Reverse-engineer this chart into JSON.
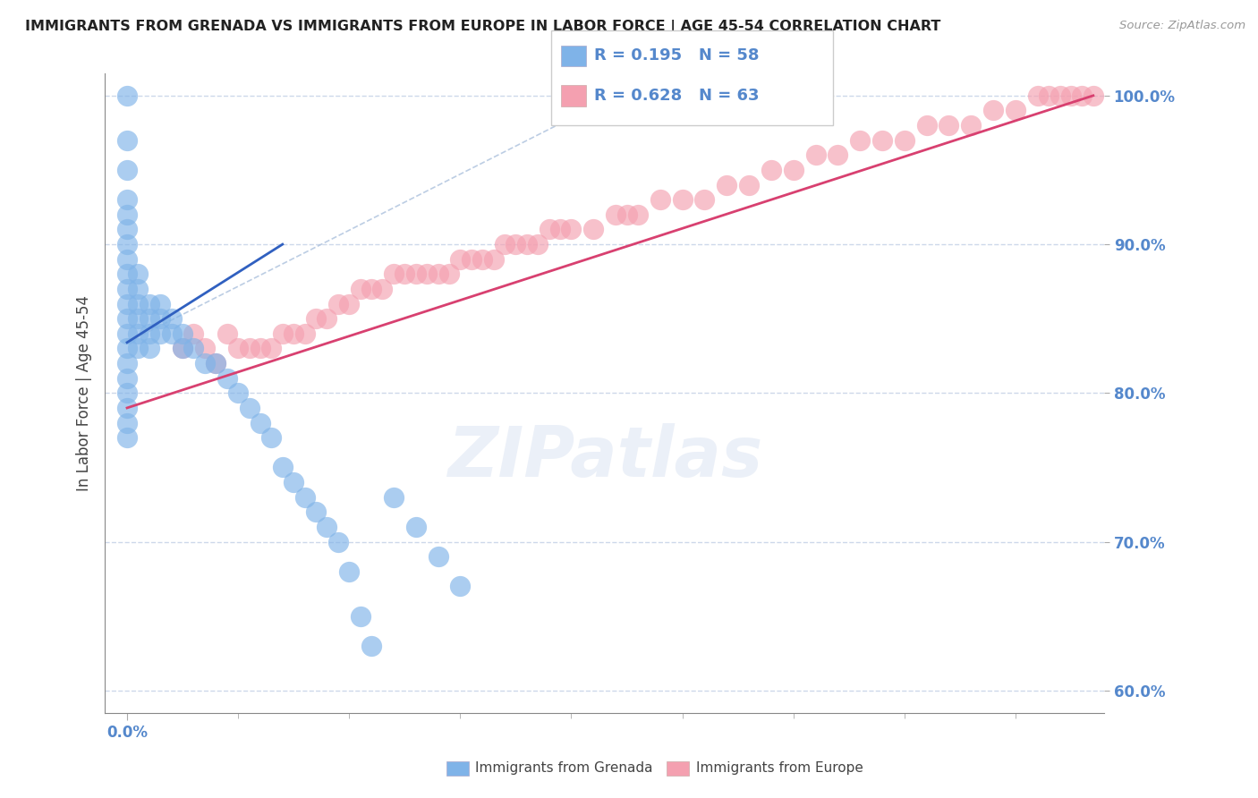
{
  "title": "IMMIGRANTS FROM GRENADA VS IMMIGRANTS FROM EUROPE IN LABOR FORCE | AGE 45-54 CORRELATION CHART",
  "source": "Source: ZipAtlas.com",
  "ylabel": "In Labor Force | Age 45-54",
  "watermark": "ZIPatlas",
  "legend1_label": "Immigrants from Grenada",
  "legend2_label": "Immigrants from Europe",
  "R_grenada": 0.195,
  "N_grenada": 58,
  "R_europe": 0.628,
  "N_europe": 63,
  "color_grenada": "#7fb3e8",
  "color_europe": "#f4a0b0",
  "color_grenada_line": "#3060c0",
  "color_europe_line": "#d84070",
  "xlim_min": -0.002,
  "xlim_max": 0.088,
  "ylim_min": 0.585,
  "ylim_max": 1.015,
  "yticks": [
    0.6,
    0.7,
    0.8,
    0.9,
    1.0
  ],
  "xtick_val": 0.0,
  "background_color": "#ffffff",
  "grid_color": "#c8d4e8",
  "title_color": "#222222",
  "axis_label_color": "#444444",
  "tick_label_color": "#5588cc",
  "grenada_x": [
    0.0,
    0.0,
    0.0,
    0.0,
    0.0,
    0.0,
    0.0,
    0.0,
    0.0,
    0.0,
    0.0,
    0.0,
    0.0,
    0.0,
    0.0,
    0.0,
    0.0,
    0.0,
    0.0,
    0.0,
    0.001,
    0.001,
    0.001,
    0.001,
    0.001,
    0.001,
    0.002,
    0.002,
    0.002,
    0.002,
    0.003,
    0.003,
    0.003,
    0.004,
    0.004,
    0.005,
    0.005,
    0.006,
    0.007,
    0.008,
    0.009,
    0.01,
    0.011,
    0.012,
    0.013,
    0.014,
    0.015,
    0.016,
    0.017,
    0.018,
    0.019,
    0.02,
    0.021,
    0.022,
    0.024,
    0.026,
    0.028,
    0.03
  ],
  "grenada_y": [
    1.0,
    0.97,
    0.95,
    0.93,
    0.92,
    0.91,
    0.9,
    0.89,
    0.88,
    0.87,
    0.86,
    0.85,
    0.84,
    0.83,
    0.82,
    0.81,
    0.8,
    0.79,
    0.78,
    0.77,
    0.88,
    0.87,
    0.86,
    0.85,
    0.84,
    0.83,
    0.86,
    0.85,
    0.84,
    0.83,
    0.86,
    0.85,
    0.84,
    0.85,
    0.84,
    0.84,
    0.83,
    0.83,
    0.82,
    0.82,
    0.81,
    0.8,
    0.79,
    0.78,
    0.77,
    0.75,
    0.74,
    0.73,
    0.72,
    0.71,
    0.7,
    0.68,
    0.65,
    0.63,
    0.73,
    0.71,
    0.69,
    0.67
  ],
  "europe_x": [
    0.005,
    0.006,
    0.007,
    0.008,
    0.009,
    0.01,
    0.011,
    0.012,
    0.013,
    0.014,
    0.015,
    0.016,
    0.017,
    0.018,
    0.019,
    0.02,
    0.021,
    0.022,
    0.023,
    0.024,
    0.025,
    0.026,
    0.027,
    0.028,
    0.029,
    0.03,
    0.031,
    0.032,
    0.033,
    0.034,
    0.035,
    0.036,
    0.037,
    0.038,
    0.039,
    0.04,
    0.042,
    0.044,
    0.045,
    0.046,
    0.048,
    0.05,
    0.052,
    0.054,
    0.056,
    0.058,
    0.06,
    0.062,
    0.064,
    0.066,
    0.068,
    0.07,
    0.072,
    0.074,
    0.076,
    0.078,
    0.08,
    0.082,
    0.083,
    0.084,
    0.085,
    0.086,
    0.087
  ],
  "europe_y": [
    0.83,
    0.84,
    0.83,
    0.82,
    0.84,
    0.83,
    0.83,
    0.83,
    0.83,
    0.84,
    0.84,
    0.84,
    0.85,
    0.85,
    0.86,
    0.86,
    0.87,
    0.87,
    0.87,
    0.88,
    0.88,
    0.88,
    0.88,
    0.88,
    0.88,
    0.89,
    0.89,
    0.89,
    0.89,
    0.9,
    0.9,
    0.9,
    0.9,
    0.91,
    0.91,
    0.91,
    0.91,
    0.92,
    0.92,
    0.92,
    0.93,
    0.93,
    0.93,
    0.94,
    0.94,
    0.95,
    0.95,
    0.96,
    0.96,
    0.97,
    0.97,
    0.97,
    0.98,
    0.98,
    0.98,
    0.99,
    0.99,
    1.0,
    1.0,
    1.0,
    1.0,
    1.0,
    1.0
  ],
  "grenada_trendline_x": [
    0.0,
    0.014
  ],
  "grenada_trendline_y": [
    0.834,
    0.9
  ],
  "europe_trendline_x": [
    0.0,
    0.087
  ],
  "europe_trendline_y": [
    0.79,
    1.0
  ],
  "refline_x": [
    0.0,
    0.044
  ],
  "refline_y": [
    0.834,
    1.0
  ]
}
